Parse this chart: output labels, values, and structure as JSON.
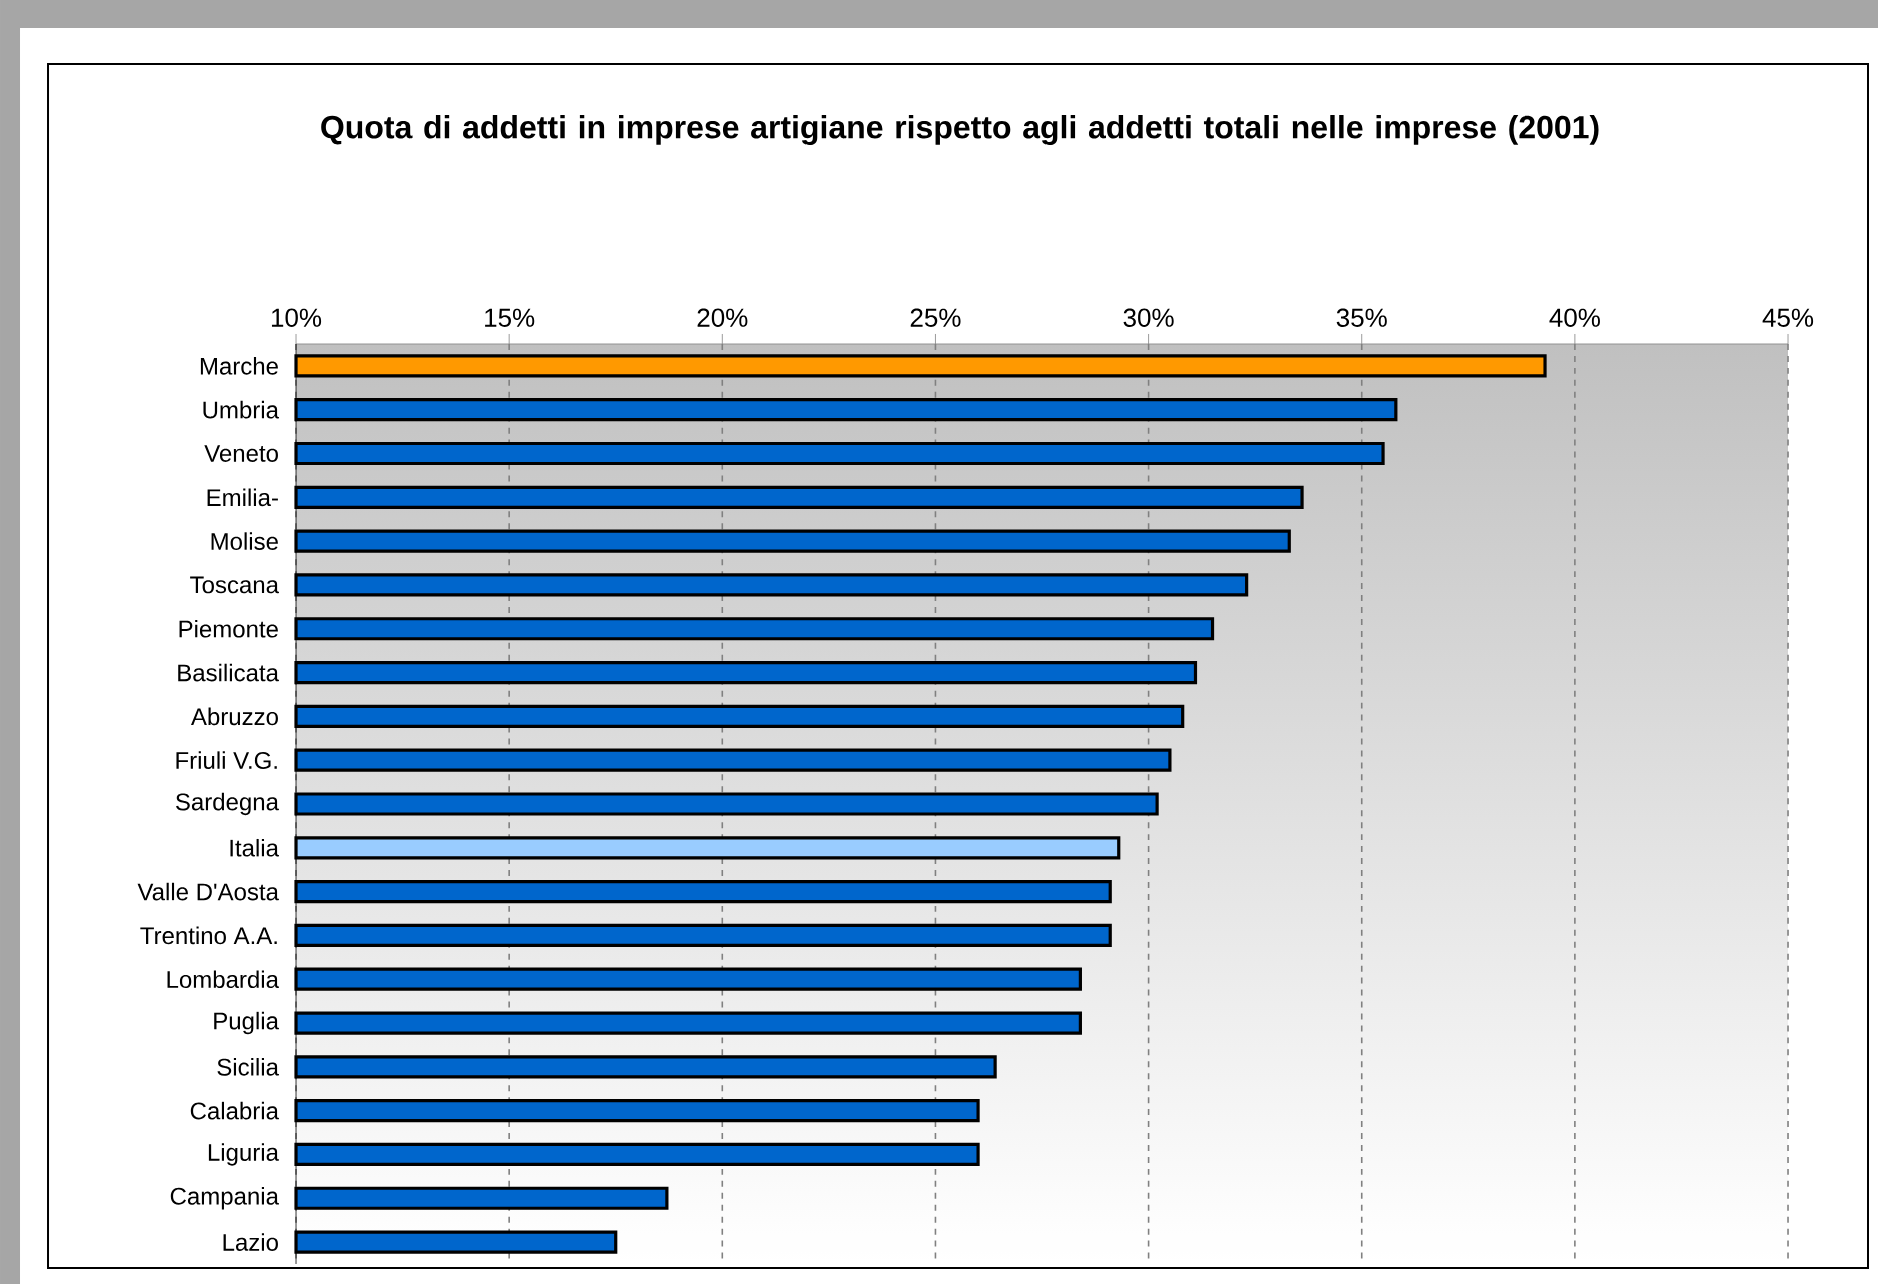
{
  "chart_data": {
    "type": "bar",
    "orientation": "horizontal",
    "title": "Quota di addetti in imprese artigiane rispetto agli addetti totali nelle imprese (2001)",
    "categories": [
      "Marche",
      "Umbria",
      "Veneto",
      "Emilia-",
      "Molise",
      "Toscana",
      "Piemonte",
      "Basilicata",
      "Abruzzo",
      "Friuli V.G.",
      "Sardegna",
      "Italia",
      "Valle D'Aosta",
      "Trentino A.A.",
      "Lombardia",
      "Puglia",
      "Sicilia",
      "Calabria",
      "Liguria",
      "Campania",
      "Lazio"
    ],
    "values": [
      39.3,
      35.8,
      35.5,
      33.6,
      33.3,
      32.3,
      31.5,
      31.1,
      30.8,
      30.5,
      30.2,
      29.3,
      29.1,
      29.1,
      28.4,
      28.4,
      26.4,
      26.0,
      26.0,
      18.7,
      17.5
    ],
    "colors": [
      "#ff9900",
      "#0066cc",
      "#0066cc",
      "#0066cc",
      "#0066cc",
      "#0066cc",
      "#0066cc",
      "#0066cc",
      "#0066cc",
      "#0066cc",
      "#0066cc",
      "#99ccff",
      "#0066cc",
      "#0066cc",
      "#0066cc",
      "#0066cc",
      "#0066cc",
      "#0066cc",
      "#0066cc",
      "#0066cc",
      "#0066cc"
    ],
    "xlim": [
      10,
      45
    ],
    "xticks": [
      {
        "value": 10,
        "label": "10%"
      },
      {
        "value": 15,
        "label": "15%"
      },
      {
        "value": 20,
        "label": "20%"
      },
      {
        "value": 25,
        "label": "25%"
      },
      {
        "value": 30,
        "label": "30%"
      },
      {
        "value": 35,
        "label": "35%"
      },
      {
        "value": 40,
        "label": "40%"
      },
      {
        "value": 45,
        "label": "45%"
      }
    ],
    "grid": "x"
  }
}
